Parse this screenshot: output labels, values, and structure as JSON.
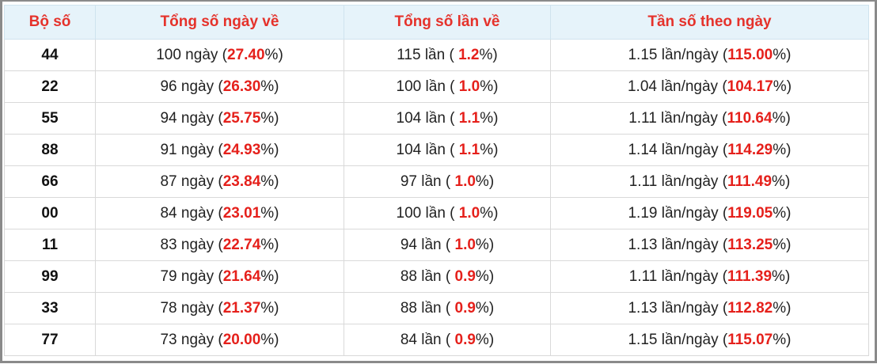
{
  "table": {
    "header": [
      "Bộ số",
      "Tổng số ngày về",
      "Tổng số lần về",
      "Tần số theo ngày"
    ],
    "rows": [
      [
        "44",
        [
          "100 ngày (",
          "27.40",
          "%)"
        ],
        [
          "115 lần ( ",
          "1.2",
          "%)"
        ],
        [
          "1.15 lần/ngày (",
          "115.00",
          "%)"
        ]
      ],
      [
        "22",
        [
          "96 ngày (",
          "26.30",
          "%)"
        ],
        [
          "100 lần ( ",
          "1.0",
          "%)"
        ],
        [
          "1.04 lần/ngày (",
          "104.17",
          "%)"
        ]
      ],
      [
        "55",
        [
          "94 ngày (",
          "25.75",
          "%)"
        ],
        [
          "104 lần ( ",
          "1.1",
          "%)"
        ],
        [
          "1.11 lần/ngày (",
          "110.64",
          "%)"
        ]
      ],
      [
        "88",
        [
          "91 ngày (",
          "24.93",
          "%)"
        ],
        [
          "104 lần ( ",
          "1.1",
          "%)"
        ],
        [
          "1.14 lần/ngày (",
          "114.29",
          "%)"
        ]
      ],
      [
        "66",
        [
          "87 ngày (",
          "23.84",
          "%)"
        ],
        [
          "97 lần ( ",
          "1.0",
          "%)"
        ],
        [
          "1.11 lần/ngày (",
          "111.49",
          "%)"
        ]
      ],
      [
        "00",
        [
          "84 ngày (",
          "23.01",
          "%)"
        ],
        [
          "100 lần ( ",
          "1.0",
          "%)"
        ],
        [
          "1.19 lần/ngày (",
          "119.05",
          "%)"
        ]
      ],
      [
        "11",
        [
          "83 ngày (",
          "22.74",
          "%)"
        ],
        [
          "94 lần ( ",
          "1.0",
          "%)"
        ],
        [
          "1.13 lần/ngày (",
          "113.25",
          "%)"
        ]
      ],
      [
        "99",
        [
          "79 ngày (",
          "21.64",
          "%)"
        ],
        [
          "88 lần ( ",
          "0.9",
          "%)"
        ],
        [
          "1.11 lần/ngày (",
          "111.39",
          "%)"
        ]
      ],
      [
        "33",
        [
          "78 ngày (",
          "21.37",
          "%)"
        ],
        [
          "88 lần ( ",
          "0.9",
          "%)"
        ],
        [
          "1.13 lần/ngày (",
          "112.82",
          "%)"
        ]
      ],
      [
        "77",
        [
          "73 ngày (",
          "20.00",
          "%)"
        ],
        [
          "84 lần ( ",
          "0.9",
          "%)"
        ],
        [
          "1.15 lần/ngày (",
          "115.07",
          "%)"
        ]
      ]
    ]
  }
}
